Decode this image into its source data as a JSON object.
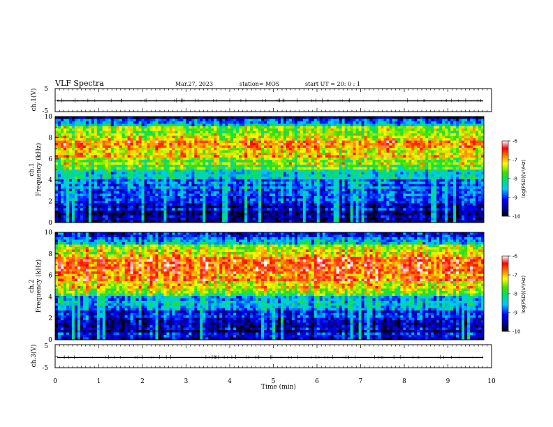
{
  "header": {
    "title": "VLF Spectra",
    "date": "Mar.27, 2023",
    "station": "station= MOS",
    "start": "start  UT =   20: 0  : 1"
  },
  "chart_data": {
    "type": "heatmap",
    "x": {
      "label": "Time  (min)",
      "range": [
        0,
        10
      ],
      "ticks": [
        "0",
        "1",
        "2",
        "3",
        "4",
        "5",
        "6",
        "7",
        "8",
        "9",
        "10"
      ]
    },
    "panels": [
      {
        "name": "ch.1(V)",
        "type": "line",
        "ylabel": "ch.1(V)",
        "ylim": [
          -5,
          5
        ],
        "ticks": [
          "5",
          "-5"
        ],
        "level": -0.3
      },
      {
        "name": "ch.1",
        "type": "heatmap",
        "ylabel": "ch.1",
        "ylabel2": "Frequency  (kHz)",
        "ylim": [
          0,
          10
        ],
        "ticks": [
          "0",
          "2",
          "4",
          "6",
          "8",
          "10"
        ],
        "profile_khz": [
          0,
          2,
          4,
          5,
          6,
          7,
          8,
          9,
          9.8
        ],
        "profile_log_psd": [
          -9.6,
          -9.2,
          -8.8,
          -8.0,
          -7.3,
          -7.0,
          -7.0,
          -7.6,
          -9.5
        ],
        "colorbar": {
          "label": "log(PSD)(V²/Hz)",
          "range": [
            -10,
            -6
          ],
          "ticks": [
            "-6",
            "-7",
            "-8",
            "-9",
            "-10"
          ]
        }
      },
      {
        "name": "ch.2",
        "type": "heatmap",
        "ylabel": "ch.2",
        "ylabel2": "Frequency  (kHz)",
        "ylim": [
          0,
          10
        ],
        "ticks": [
          "0",
          "2",
          "4",
          "6",
          "8",
          "10"
        ],
        "profile_khz": [
          0,
          2,
          3.5,
          4.5,
          5.5,
          6.5,
          7.5,
          8.5,
          9.8
        ],
        "profile_log_psd": [
          -9.6,
          -9.1,
          -8.7,
          -7.8,
          -6.9,
          -6.5,
          -6.7,
          -7.6,
          -9.0
        ],
        "colorbar": {
          "label": "log(PSD)(V²/Hz)",
          "range": [
            -10,
            -6
          ],
          "ticks": [
            "-6",
            "-7",
            "-8",
            "-9",
            "-10"
          ]
        }
      },
      {
        "name": "ch.3(V)",
        "type": "line",
        "ylabel": "ch.3(V)",
        "ylim": [
          -5,
          5
        ],
        "ticks": [
          "5",
          "-5"
        ],
        "level": -0.6
      }
    ],
    "grid": false
  }
}
